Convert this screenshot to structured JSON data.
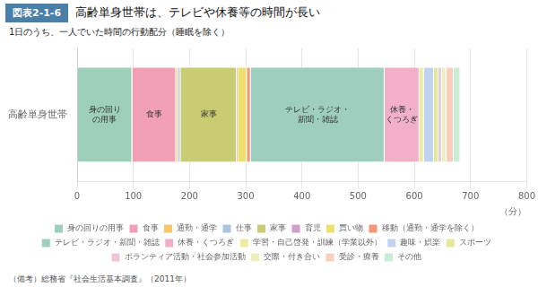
{
  "chart_data": {
    "type": "bar",
    "orientation": "horizontal",
    "stacked": true,
    "title": "高齢単身世帯は、テレビや休養等の時間が長い",
    "subtitle": "1日のうち、一人でいた時間の行動配分（睡眠を除く）",
    "xlabel": "（分）",
    "categories": [
      "高齢単身世帯"
    ],
    "xlim": [
      0,
      800
    ],
    "xticks": [
      0,
      100,
      200,
      300,
      400,
      500,
      600,
      700,
      800
    ],
    "grid": true,
    "legend": "bottom",
    "series": [
      {
        "name": "身の回りの用事",
        "color": "#9ecfba",
        "values": [
          98
        ]
      },
      {
        "name": "食事",
        "color": "#f2a0b8",
        "values": [
          78
        ]
      },
      {
        "name": "通勤・通学",
        "color": "#f5c86a",
        "values": [
          4
        ]
      },
      {
        "name": "仕事",
        "color": "#a8c4e0",
        "values": [
          4
        ]
      },
      {
        "name": "家事",
        "color": "#c8cc72",
        "values": [
          100
        ]
      },
      {
        "name": "育児",
        "color": "#d0a0cc",
        "values": [
          2
        ]
      },
      {
        "name": "買い物",
        "color": "#ece070",
        "values": [
          16
        ]
      },
      {
        "name": "移動（通勤・通学を除く）",
        "color": "#f09878",
        "values": [
          7
        ]
      },
      {
        "name": "テレビ・ラジオ・新聞・雑誌",
        "color": "#9ecfbe",
        "values": [
          238
        ]
      },
      {
        "name": "休養・くつろぎ",
        "color": "#f2b0c8",
        "values": [
          62
        ]
      },
      {
        "name": "学習・自己啓発・訓練（学業以外）",
        "color": "#eeeaa0",
        "values": [
          8
        ]
      },
      {
        "name": "趣味・娯楽",
        "color": "#c0d4f0",
        "values": [
          18
        ]
      },
      {
        "name": "スポーツ",
        "color": "#e4e898",
        "values": [
          8
        ]
      },
      {
        "name": "ボランティア活動・社会参加活動",
        "color": "#f0c4d8",
        "values": [
          6
        ]
      },
      {
        "name": "交際・付き合い",
        "color": "#eeeebc",
        "values": [
          8
        ]
      },
      {
        "name": "受診・療養",
        "color": "#f8cebe",
        "values": [
          13
        ]
      },
      {
        "name": "その他",
        "color": "#c8ecd4",
        "values": [
          12
        ]
      }
    ],
    "annotations": [
      {
        "text": "図表2-1-6"
      },
      {
        "text": "身の回り\nの用事",
        "series": "身の回りの用事"
      },
      {
        "text": "食事",
        "series": "食事"
      },
      {
        "text": "家事",
        "series": "家事"
      },
      {
        "text": "テレビ・ラジオ・\n新聞・雑誌",
        "series": "テレビ・ラジオ・新聞・雑誌"
      },
      {
        "text": "休養・\nくつろぎ",
        "series": "休養・くつろぎ"
      },
      {
        "text": "（備考）総務省『社会生活基本調査』（2011年）"
      }
    ]
  }
}
